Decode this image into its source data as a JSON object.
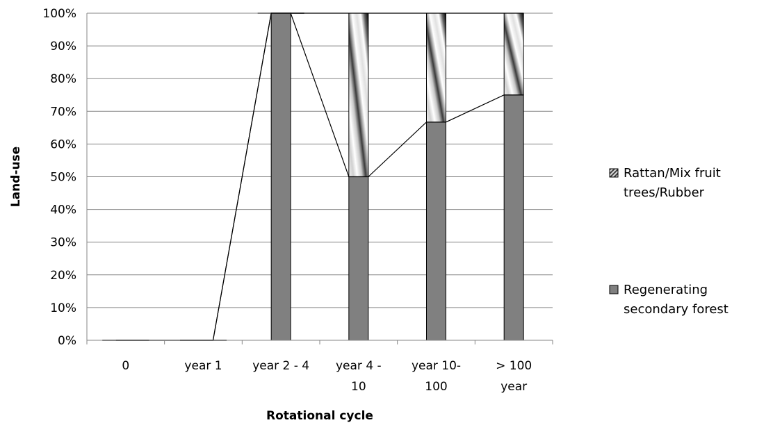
{
  "chart_data": {
    "type": "bar",
    "stacked": true,
    "categories": [
      "0",
      "year 1",
      "year 2 - 4",
      "year 4 - 10",
      "year 10- 100",
      "> 100 year"
    ],
    "category_lines": [
      [
        "0"
      ],
      [
        "year 1"
      ],
      [
        "year 2 - 4"
      ],
      [
        "year 4 -",
        "10"
      ],
      [
        "year 10-",
        "100"
      ],
      [
        "> 100",
        "year"
      ]
    ],
    "series": [
      {
        "name": "Regenerating secondary forest",
        "values": [
          0,
          0,
          100,
          50,
          66.7,
          75
        ],
        "color": "#808080"
      },
      {
        "name": "Rattan/Mix fruit trees/Rubber",
        "values": [
          0,
          0,
          0,
          50,
          33.3,
          25
        ],
        "color": "gradient-hatched"
      }
    ],
    "series_lines_connected": true,
    "xlabel": "Rotational cycle",
    "ylabel": "Land-use",
    "ylim": [
      0,
      100
    ],
    "yticks": [
      "0%",
      "10%",
      "20%",
      "30%",
      "40%",
      "50%",
      "60%",
      "70%",
      "80%",
      "90%",
      "100%"
    ],
    "grid": true,
    "legend": {
      "placement": "right",
      "items": [
        {
          "series": 1,
          "lines": [
            "Rattan/Mix fruit",
            "trees/Rubber"
          ]
        },
        {
          "series": 0,
          "lines": [
            "Regenerating",
            "secondary forest"
          ]
        }
      ]
    }
  }
}
